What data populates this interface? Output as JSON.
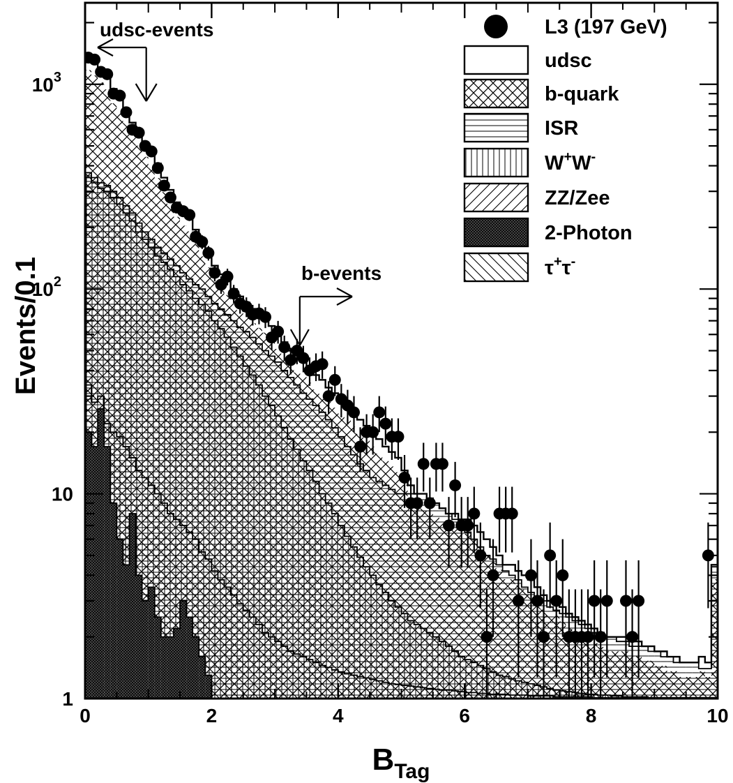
{
  "chart_data": {
    "type": "histogram",
    "ylabel": "Events/0.1",
    "xlabel": "B",
    "xlabel_sub": "Tag",
    "xlim": [
      0,
      10
    ],
    "ylim": [
      1,
      2500
    ],
    "y_scale": "log",
    "x_ticks": [
      "0",
      "2",
      "4",
      "6",
      "8",
      "10"
    ],
    "y_ticks": [
      {
        "value": 1,
        "base": "1",
        "exp": ""
      },
      {
        "value": 10,
        "base": "10",
        "exp": ""
      },
      {
        "value": 100,
        "base": "10",
        "exp": "2"
      },
      {
        "value": 1000,
        "base": "10",
        "exp": "3"
      }
    ],
    "legend_position": "top-right",
    "legend": [
      {
        "label": "L3 (197 GeV)",
        "sup1": "",
        "mid": "",
        "sup2": "",
        "marker": "dot"
      },
      {
        "label": "udsc",
        "sup1": "",
        "mid": "",
        "sup2": "",
        "marker": "blank"
      },
      {
        "label": "b-quark",
        "sup1": "",
        "mid": "",
        "sup2": "",
        "marker": "cross"
      },
      {
        "label": "ISR",
        "sup1": "",
        "mid": "",
        "sup2": "",
        "marker": "hlines"
      },
      {
        "label": "W",
        "sup1": "+",
        "mid": "W",
        "sup2": "-",
        "marker": "vlines"
      },
      {
        "label": "ZZ/Zee",
        "sup1": "",
        "mid": "",
        "sup2": "",
        "marker": "diag"
      },
      {
        "label": "2-Photon",
        "sup1": "",
        "mid": "",
        "sup2": "",
        "marker": "dense"
      },
      {
        "label": "τ",
        "sup1": "+",
        "mid": "τ",
        "sup2": "-",
        "marker": "antidiag"
      }
    ],
    "annotations": [
      {
        "text": "udsc-events",
        "x": 0.3,
        "arrow_x": 1.0,
        "direction": "left"
      },
      {
        "text": "b-events",
        "x": 3.35,
        "arrow_x": 3.35,
        "direction": "right"
      }
    ],
    "data_points": {
      "x": [
        0.05,
        0.15,
        0.25,
        0.35,
        0.45,
        0.55,
        0.65,
        0.75,
        0.85,
        0.95,
        1.05,
        1.15,
        1.25,
        1.35,
        1.45,
        1.55,
        1.65,
        1.75,
        1.85,
        1.95,
        2.05,
        2.15,
        2.25,
        2.35,
        2.45,
        2.55,
        2.65,
        2.75,
        2.85,
        2.95,
        3.05,
        3.15,
        3.25,
        3.35,
        3.45,
        3.55,
        3.65,
        3.75,
        3.85,
        3.95,
        4.05,
        4.15,
        4.25,
        4.35,
        4.45,
        4.55,
        4.65,
        4.75,
        4.85,
        4.95,
        5.05,
        5.15,
        5.25,
        5.35,
        5.45,
        5.55,
        5.65,
        5.75,
        5.85,
        5.95,
        6.05,
        6.15,
        6.25,
        6.35,
        6.45,
        6.55,
        6.65,
        6.75,
        6.85,
        7.05,
        7.15,
        7.25,
        7.35,
        7.45,
        7.55,
        7.65,
        7.75,
        7.85,
        7.95,
        8.05,
        8.15,
        8.25,
        8.55,
        8.65,
        8.75,
        9.85
      ],
      "y": [
        1350,
        1320,
        1150,
        1120,
        900,
        880,
        730,
        600,
        580,
        500,
        470,
        390,
        320,
        280,
        250,
        240,
        230,
        180,
        170,
        150,
        120,
        105,
        115,
        95,
        85,
        82,
        75,
        76,
        73,
        58,
        62,
        52,
        45,
        50,
        46,
        40,
        42,
        43,
        30,
        36,
        29,
        27,
        25,
        17,
        20,
        20,
        25,
        22,
        19,
        19,
        12,
        9,
        9,
        14,
        9,
        14,
        14,
        7,
        11,
        7,
        7,
        8,
        5,
        2,
        4,
        8,
        8,
        8,
        3,
        4,
        3,
        2,
        5,
        3,
        4,
        2,
        2,
        2,
        2,
        3,
        2,
        3,
        3,
        2,
        3,
        5
      ]
    },
    "background_stack": {
      "x_edges": [
        0,
        0.1,
        0.2,
        0.3,
        0.4,
        0.5,
        0.6,
        0.7,
        0.8,
        0.9,
        1.0,
        1.1,
        1.2,
        1.3,
        1.4,
        1.5,
        1.6,
        1.7,
        1.8,
        1.9,
        2.0,
        2.1,
        2.2,
        2.3,
        2.4,
        2.5,
        2.6,
        2.7,
        2.8,
        2.9,
        3.0,
        3.1,
        3.2,
        3.3,
        3.4,
        3.5,
        3.6,
        3.7,
        3.8,
        3.9,
        4.0,
        4.1,
        4.2,
        4.3,
        4.4,
        4.5,
        4.6,
        4.7,
        4.8,
        4.9,
        5.0,
        5.1,
        5.2,
        5.3,
        5.4,
        5.5,
        5.6,
        5.7,
        5.8,
        5.9,
        6.0,
        6.1,
        6.2,
        6.3,
        6.4,
        6.5,
        6.6,
        6.7,
        6.8,
        6.9,
        7.0,
        7.1,
        7.2,
        7.3,
        7.4,
        7.5,
        7.6,
        7.7,
        7.8,
        7.9,
        8.0,
        8.1,
        8.2,
        8.3,
        8.4,
        8.5,
        8.6,
        8.7,
        8.8,
        8.9,
        9.0,
        9.1,
        9.2,
        9.3,
        9.4,
        9.5,
        9.6,
        9.7,
        9.8,
        9.9,
        10.0
      ],
      "total": [
        1380,
        1300,
        1200,
        1110,
        950,
        860,
        760,
        650,
        590,
        520,
        460,
        410,
        350,
        305,
        265,
        240,
        225,
        195,
        170,
        150,
        130,
        118,
        110,
        100,
        92,
        86,
        80,
        76,
        72,
        66,
        60,
        55,
        50,
        46,
        44,
        41,
        38,
        36,
        33,
        31,
        29,
        27,
        25,
        23,
        21.5,
        20,
        18.5,
        17,
        16,
        15,
        13,
        11,
        10,
        10,
        9.5,
        9,
        8.5,
        8,
        8,
        7.5,
        7.5,
        7,
        6.5,
        6,
        5.5,
        5,
        4.5,
        4.5,
        4.2,
        4,
        3.8,
        3.5,
        3.2,
        3,
        3,
        2.8,
        2.6,
        2.5,
        2.4,
        2.3,
        2.2,
        2.1,
        2,
        2,
        2,
        2,
        1.9,
        1.9,
        1.8,
        1.8,
        1.7,
        1.7,
        1.6,
        1.6,
        1.5,
        1.5,
        1.5,
        1.6,
        1.5,
        4.5
      ],
      "isr_top": [
        370,
        350,
        330,
        320,
        300,
        280,
        255,
        235,
        210,
        190,
        175,
        160,
        150,
        140,
        130,
        120,
        112,
        105,
        100,
        92,
        85,
        80,
        75,
        70,
        65,
        62,
        58,
        54,
        50,
        47,
        44,
        40,
        37,
        34,
        31,
        29,
        27,
        25,
        23,
        21,
        19,
        17,
        15.5,
        14,
        13,
        12,
        11.5,
        11,
        10.5,
        10,
        10,
        10,
        10,
        10,
        9.5,
        9,
        8.5,
        8,
        7.5,
        7,
        6.5,
        6,
        5.5,
        5,
        4.8,
        4.5,
        4.2,
        4,
        3.8,
        3.5,
        3.3,
        3.1,
        3,
        2.8,
        2.7,
        2.6,
        2.5,
        2.4,
        2.3,
        2.2,
        2.1,
        2,
        2,
        2,
        1.9,
        1.9,
        1.8,
        1.8,
        1.8,
        1.7,
        1.7,
        1.6,
        1.6,
        1.5,
        1.5,
        1.5,
        1.5,
        1.4,
        1.4,
        4.4
      ],
      "ww_top": [
        350,
        330,
        310,
        300,
        280,
        260,
        235,
        215,
        190,
        175,
        160,
        145,
        135,
        125,
        115,
        105,
        98,
        90,
        84,
        78,
        70,
        64,
        58,
        52,
        47,
        42,
        38,
        34,
        30,
        27,
        24,
        21,
        18.5,
        16.5,
        14.5,
        13,
        11.5,
        10,
        9,
        8,
        7,
        6.2,
        5.5,
        4.9,
        4.4,
        4,
        3.6,
        3.3,
        3,
        2.8,
        2.6,
        2.4,
        2.3,
        2.2,
        2.1,
        2,
        1.9,
        1.8,
        1.7,
        1.6,
        1.55,
        1.5,
        1.45,
        1.4,
        1.35,
        1.3,
        1.28,
        1.25,
        1.22,
        1.2,
        1.18,
        1.16,
        1.14,
        1.12,
        1.1,
        1.09,
        1.08,
        1.07,
        1.06,
        1.05,
        1.05,
        1.04,
        1.04,
        1.03,
        1.03,
        1.02,
        1.02,
        1.02,
        1.02,
        1.01,
        1.01,
        1.01,
        1.01,
        1.01,
        1.01,
        1.01,
        1.01,
        1.01,
        1.01,
        1.01
      ],
      "zz_top": [
        34,
        28,
        30,
        22,
        20,
        19,
        17,
        15,
        13,
        12,
        11,
        10,
        9,
        8,
        7.5,
        7,
        6.5,
        6,
        5.2,
        4.8,
        4.2,
        3.8,
        3.5,
        3.2,
        2.9,
        2.7,
        2.5,
        2.3,
        2.1,
        2,
        1.9,
        1.8,
        1.7,
        1.65,
        1.6,
        1.55,
        1.5,
        1.45,
        1.42,
        1.38,
        1.35,
        1.32,
        1.3,
        1.28,
        1.26,
        1.24,
        1.22,
        1.2,
        1.18,
        1.17,
        1.16,
        1.15,
        1.14,
        1.13,
        1.12,
        1.11,
        1.1,
        1.1,
        1.09,
        1.08,
        1.07,
        1.07,
        1.06,
        1.06,
        1.05,
        1.05,
        1.05,
        1.04,
        1.04,
        1.04,
        1.03,
        1.03,
        1.03,
        1.03,
        1.02,
        1.02,
        1.02,
        1.02,
        1.02,
        1.02,
        1.01,
        1.01,
        1.01,
        1.01,
        1.01,
        1.01,
        1.01,
        1.01,
        1.01,
        1.01,
        1.01,
        1.01,
        1.01,
        1.01,
        1.01,
        1.01,
        1.01,
        1.01,
        1.01,
        1.01
      ],
      "photon_top": [
        20,
        17,
        26,
        17,
        9,
        6,
        4.5,
        8,
        4,
        3,
        3.5,
        2.5,
        2,
        2,
        2.2,
        3,
        2.5,
        2,
        1.6,
        1.3,
        1,
        1,
        1,
        1,
        1,
        1,
        1,
        1,
        1,
        1,
        1,
        1,
        1,
        1,
        1,
        1,
        1,
        1,
        1,
        1,
        1,
        1,
        1,
        1,
        1,
        1,
        1,
        1,
        1,
        1,
        1,
        1,
        1,
        1,
        1,
        1,
        1,
        1,
        1,
        1,
        1,
        1,
        1,
        1,
        1,
        1,
        1,
        1,
        1,
        1,
        1,
        1,
        1,
        1,
        1,
        1,
        1,
        1,
        1,
        1,
        1,
        1,
        1,
        1,
        1,
        1,
        1,
        1,
        1,
        1,
        1,
        1,
        1,
        1,
        1,
        1,
        1,
        1,
        1,
        1
      ]
    }
  }
}
